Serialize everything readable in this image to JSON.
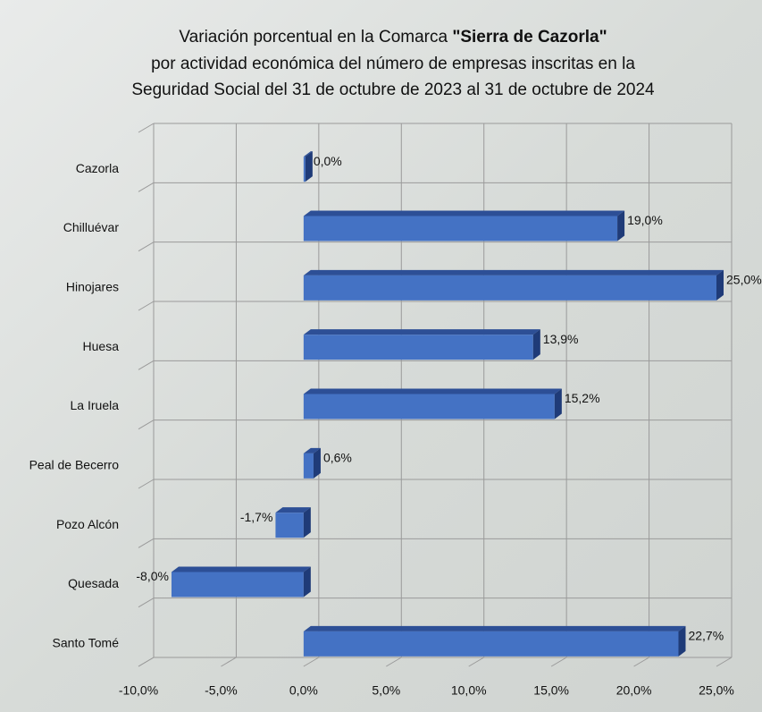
{
  "chart_data": {
    "type": "bar",
    "orientation": "horizontal",
    "title": {
      "line1": "Variación porcentual en la Comarca ",
      "highlight": "\"Sierra de Cazorla\"",
      "line2": "por actividad económica del número de empresas inscritas en la",
      "line3": "Seguridad Social del 31 de octubre de 2023 al 31 de octubre de 2024"
    },
    "categories": [
      "Cazorla",
      "Chilluévar",
      "Hinojares",
      "Huesa",
      "La Iruela",
      "Peal de Becerro",
      "Pozo Alcón",
      "Quesada",
      "Santo Tomé"
    ],
    "values": [
      0.0,
      19.0,
      25.0,
      13.9,
      15.2,
      0.6,
      -1.7,
      -8.0,
      22.7
    ],
    "value_labels": [
      "0,0%",
      "19,0%",
      "25,0%",
      "13,9%",
      "15,2%",
      "0,6%",
      "-1,7%",
      "-8,0%",
      "22,7%"
    ],
    "color": "#4472c4",
    "xlim": [
      -10,
      25
    ],
    "xticks": [
      {
        "value": -10,
        "label": "-10,0%"
      },
      {
        "value": -5,
        "label": "-5,0%"
      },
      {
        "value": 0,
        "label": "0,0%"
      },
      {
        "value": 5,
        "label": "5,0%"
      },
      {
        "value": 10,
        "label": "10,0%"
      },
      {
        "value": 15,
        "label": "15,0%"
      },
      {
        "value": 20,
        "label": "20,0%"
      },
      {
        "value": 25,
        "label": "25,0%"
      }
    ],
    "grid": true
  }
}
